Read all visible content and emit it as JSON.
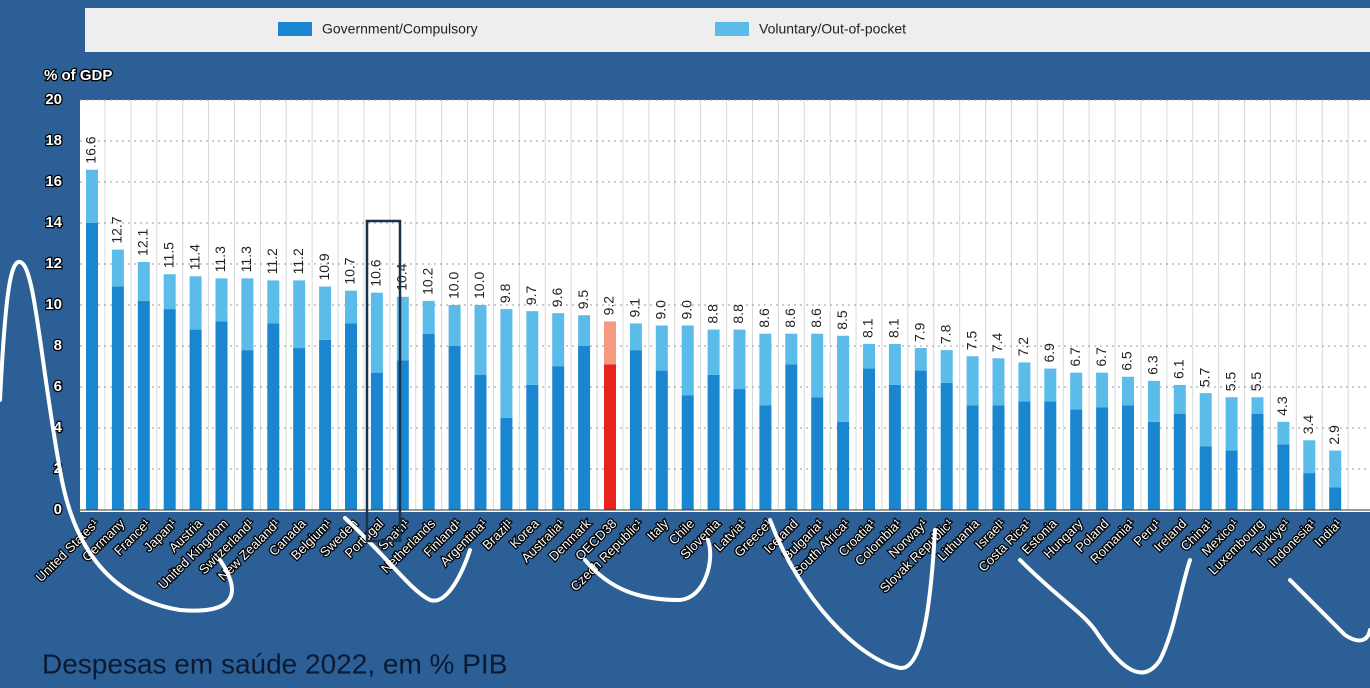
{
  "chart_data": {
    "type": "stacked_bar",
    "ylabel": "% of GDP",
    "caption": "Despesas em saúde 2022, em % PIB",
    "categories": [
      "United States¹",
      "Germany",
      "France¹",
      "Japan¹",
      "Austria",
      "United Kingdom",
      "Switzerland¹",
      "New Zealand¹",
      "Canada",
      "Belgium¹",
      "Sweden",
      "Portugal",
      "Spain¹",
      "Netherlands",
      "Finland¹",
      "Argentina¹",
      "Brazil¹",
      "Korea",
      "Australia¹",
      "Denmark",
      "OECD38",
      "Czech Republic¹",
      "Italy",
      "Chile",
      "Slovenia",
      "Latvia¹",
      "Greece¹",
      "Iceland",
      "Bulgaria¹",
      "South Africa¹",
      "Croatia¹",
      "Colombia¹",
      "Norway¹",
      "Slovak Republic¹",
      "Lithuania",
      "Israel¹",
      "Costa Rica¹",
      "Estonia",
      "Hungary",
      "Poland",
      "Romania¹",
      "Peru¹",
      "Ireland",
      "China¹",
      "Mexico¹",
      "Luxembourg",
      "Türkiye¹",
      "Indonesia¹",
      "India¹"
    ],
    "series": [
      {
        "name": "Government/Compulsory",
        "color": "#1a86d0",
        "highlight_color": "#e8221c",
        "values": [
          14.0,
          10.9,
          10.2,
          9.8,
          8.8,
          9.2,
          7.8,
          9.1,
          7.9,
          8.3,
          9.1,
          6.7,
          7.3,
          8.6,
          8.0,
          6.6,
          4.5,
          6.1,
          7.0,
          8.0,
          7.1,
          7.8,
          6.8,
          5.6,
          6.6,
          5.9,
          5.1,
          7.1,
          5.5,
          4.3,
          6.9,
          6.1,
          6.8,
          6.2,
          5.1,
          5.1,
          5.3,
          5.3,
          4.9,
          5.0,
          5.1,
          4.3,
          4.7,
          3.1,
          2.9,
          4.7,
          3.2,
          1.8,
          1.1
        ]
      },
      {
        "name": "Voluntary/Out-of-pocket",
        "color": "#5bbbe9",
        "highlight_color": "#f59a80",
        "values": [
          2.6,
          1.8,
          1.9,
          1.7,
          2.6,
          2.1,
          3.5,
          2.1,
          3.3,
          2.6,
          1.6,
          3.9,
          3.1,
          1.6,
          2.0,
          3.4,
          5.3,
          3.6,
          2.6,
          1.5,
          2.1,
          1.3,
          2.2,
          3.4,
          2.2,
          2.9,
          3.5,
          1.5,
          3.1,
          4.2,
          1.2,
          2.0,
          1.1,
          1.6,
          2.4,
          2.3,
          1.9,
          1.6,
          1.8,
          1.7,
          1.4,
          2.0,
          1.4,
          2.6,
          2.6,
          0.8,
          1.1,
          1.6,
          1.8
        ]
      }
    ],
    "totals": [
      16.6,
      12.7,
      12.1,
      11.5,
      11.4,
      11.3,
      11.3,
      11.2,
      11.2,
      10.9,
      10.7,
      10.6,
      10.4,
      10.2,
      10.0,
      10.0,
      9.8,
      9.7,
      9.6,
      9.5,
      9.2,
      9.1,
      9.0,
      9.0,
      8.8,
      8.8,
      8.6,
      8.6,
      8.6,
      8.5,
      8.1,
      8.1,
      7.9,
      7.8,
      7.5,
      7.4,
      7.2,
      6.9,
      6.7,
      6.7,
      6.5,
      6.3,
      6.1,
      5.7,
      5.5,
      5.5,
      4.3,
      3.4,
      2.9
    ],
    "value_labels": [
      "16.6",
      "12.7",
      "12.1",
      "11.5",
      "11.4",
      "11.3",
      "11.3",
      "11.2",
      "11.2",
      "10.9",
      "10.7",
      "10.6",
      "10.4",
      "10.2",
      "10.0",
      "10.0",
      "9.8",
      "9.7",
      "9.6",
      "9.5",
      "9.2",
      "9.1",
      "9.0",
      "9.0",
      "8.8",
      "8.8",
      "8.6",
      "8.6",
      "8.6",
      "8.5",
      "8.1",
      "8.1",
      "7.9",
      "7.8",
      "7.5",
      "7.4",
      "7.2",
      "6.9",
      "6.7",
      "6.7",
      "6.5",
      "6.3",
      "6.1",
      "5.7",
      "5.5",
      "5.5",
      "4.3",
      "3.4",
      "2.9"
    ],
    "highlight": "OECD38",
    "ylim": [
      0,
      20
    ],
    "yticks": [
      0,
      2,
      4,
      6,
      8,
      10,
      12,
      14,
      16,
      18,
      20
    ],
    "grid": true
  }
}
